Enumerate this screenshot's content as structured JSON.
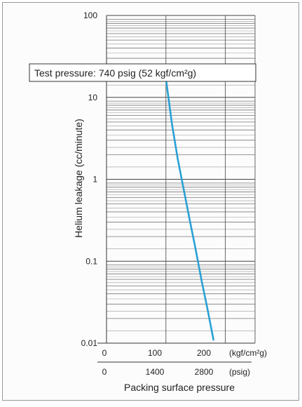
{
  "chart_data": {
    "type": "line",
    "title": "Test pressure: 740 psig (52 kgf/cm²g)",
    "ylabel": "Helium leakage (cc/minute)",
    "xlabel": "Packing surface pressure",
    "y_scale": "log",
    "ylim": [
      0.01,
      100
    ],
    "xlim": [
      0,
      250
    ],
    "grid": true,
    "y_ticks": [
      "100",
      "10",
      "1",
      "0.1",
      "0.01"
    ],
    "x_axes": [
      {
        "unit": "(kgf/cm²g)",
        "ticks": [
          "0",
          "100",
          "200"
        ]
      },
      {
        "unit": "(psig)",
        "ticks": [
          "0",
          "1400",
          "2800"
        ]
      }
    ],
    "series": [
      {
        "x": [
          100,
          110,
          120,
          130,
          140,
          150,
          160,
          170,
          180
        ],
        "y": [
          17,
          4.8,
          1.75,
          0.75,
          0.32,
          0.14,
          0.058,
          0.026,
          0.011
        ]
      }
    ],
    "line_color": "#2aa0d4"
  }
}
